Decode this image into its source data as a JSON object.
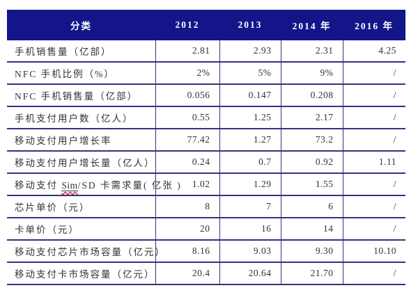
{
  "header": {
    "category": "分类",
    "years": [
      "2012",
      "2013",
      "2014 年",
      "2016 年"
    ]
  },
  "rows": [
    {
      "label": "手机销售量（亿部）",
      "values": [
        "2.81",
        "2.93",
        "2.31",
        "4.25"
      ]
    },
    {
      "label": "NFC 手机比例（%）",
      "values": [
        "2%",
        "5%",
        "9%",
        "/"
      ]
    },
    {
      "label": "NFC 手机销售量（亿部）",
      "values": [
        "0.056",
        "0.147",
        "0.208",
        "/"
      ]
    },
    {
      "label": "手机支付用户数（亿人）",
      "values": [
        "0.55",
        "1.25",
        "2.17",
        "/"
      ]
    },
    {
      "label": "移动支付用户增长率",
      "values": [
        "77.42",
        "1.27",
        "73.2",
        "/"
      ]
    },
    {
      "label": "移动支付用户增长量（亿人）",
      "values": [
        "0.24",
        "0.7",
        "0.92",
        "1.11"
      ]
    },
    {
      "label": "移动支付 Sim/SD 卡需求量(亿张)",
      "label_parts": {
        "prefix": "移动支付 ",
        "sim": "Sim",
        "suffix": "/SD 卡需求量( 亿张 )"
      },
      "values": [
        "1.02",
        "1.29",
        "1.55",
        "/"
      ]
    },
    {
      "label": "芯片单价（元）",
      "values": [
        "8",
        "7",
        "6",
        "/"
      ]
    },
    {
      "label": "卡单价（元）",
      "values": [
        "20",
        "16",
        "14",
        "/"
      ]
    },
    {
      "label": "移动支付芯片市场容量（亿元）",
      "values": [
        "8.16",
        "9.03",
        "9.30",
        "10.10"
      ]
    },
    {
      "label": "移动支付卡市场容量（亿元）",
      "values": [
        "20.4",
        "20.64",
        "21.70",
        "/"
      ]
    }
  ],
  "colors": {
    "header_bg": "#15158a",
    "header_text": "#ffffff",
    "rule": "#32327e",
    "body_text": "#333333",
    "squiggle": "#cc2222"
  }
}
